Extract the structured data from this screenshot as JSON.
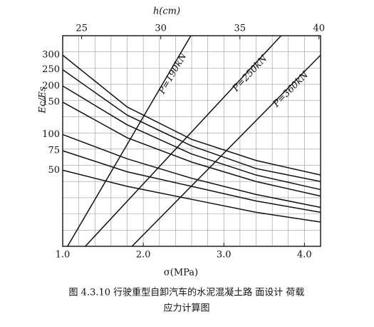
{
  "chart_data": {
    "type": "line",
    "caption": [
      "图 4.3.10  行驶重型自卸汽车的水泥混凝土路 面设计 荷载",
      "应力计算图"
    ],
    "xlabel": "σ(MPa)",
    "x2label": "h(cm)",
    "ylabel": "Ec/Es",
    "xlim": [
      1.0,
      4.2
    ],
    "xticks": [
      {
        "value": 1,
        "label": "1.0"
      },
      {
        "value": 2,
        "label": "2.0"
      },
      {
        "value": 3,
        "label": "3.0"
      },
      {
        "value": 4,
        "label": "4.0"
      }
    ],
    "x2lim": [
      23.8,
      40.1
    ],
    "x2ticks": [
      25,
      30,
      35,
      40
    ],
    "ylim": [
      0,
      13
    ],
    "grid": true,
    "series": [
      {
        "name": "300",
        "color": "#111",
        "x": [
          1.0,
          1.8,
          2.6,
          3.4,
          4.2
        ],
        "values": [
          11.8,
          8.6,
          6.6,
          5.3,
          4.4
        ]
      },
      {
        "name": "250",
        "color": "#111",
        "x": [
          1.0,
          1.8,
          2.6,
          3.4,
          4.2
        ],
        "values": [
          10.9,
          8.1,
          6.2,
          4.8,
          4.0
        ]
      },
      {
        "name": "200",
        "color": "#111",
        "x": [
          1.0,
          1.8,
          2.6,
          3.4,
          4.2
        ],
        "values": [
          9.9,
          7.5,
          5.7,
          4.4,
          3.5
        ]
      },
      {
        "name": "150",
        "color": "#111",
        "x": [
          1.0,
          1.8,
          2.6,
          3.4,
          4.2
        ],
        "values": [
          8.9,
          6.7,
          5.2,
          4.0,
          3.1
        ]
      },
      {
        "name": "100",
        "color": "#111",
        "x": [
          1.0,
          1.8,
          2.6,
          3.4,
          4.2
        ],
        "values": [
          6.9,
          5.4,
          4.2,
          3.2,
          2.4
        ]
      },
      {
        "name": "75",
        "color": "#111",
        "x": [
          1.0,
          1.8,
          2.6,
          3.4,
          4.2
        ],
        "values": [
          5.9,
          4.6,
          3.7,
          2.8,
          2.1
        ]
      },
      {
        "name": "50",
        "color": "#111",
        "x": [
          1.0,
          1.8,
          2.6,
          3.4,
          4.2
        ],
        "values": [
          4.7,
          3.7,
          2.9,
          2.1,
          1.5
        ]
      },
      {
        "name": "P=190kN",
        "color": "#111",
        "x": [
          1.06,
          2.59
        ],
        "values": [
          0,
          13
        ]
      },
      {
        "name": "P=250kN",
        "color": "#111",
        "x": [
          1.28,
          3.71
        ],
        "values": [
          0,
          13
        ]
      },
      {
        "name": "P=360kN",
        "color": "#111",
        "x": [
          1.86,
          4.2
        ],
        "values": [
          0,
          11.8
        ]
      }
    ]
  }
}
